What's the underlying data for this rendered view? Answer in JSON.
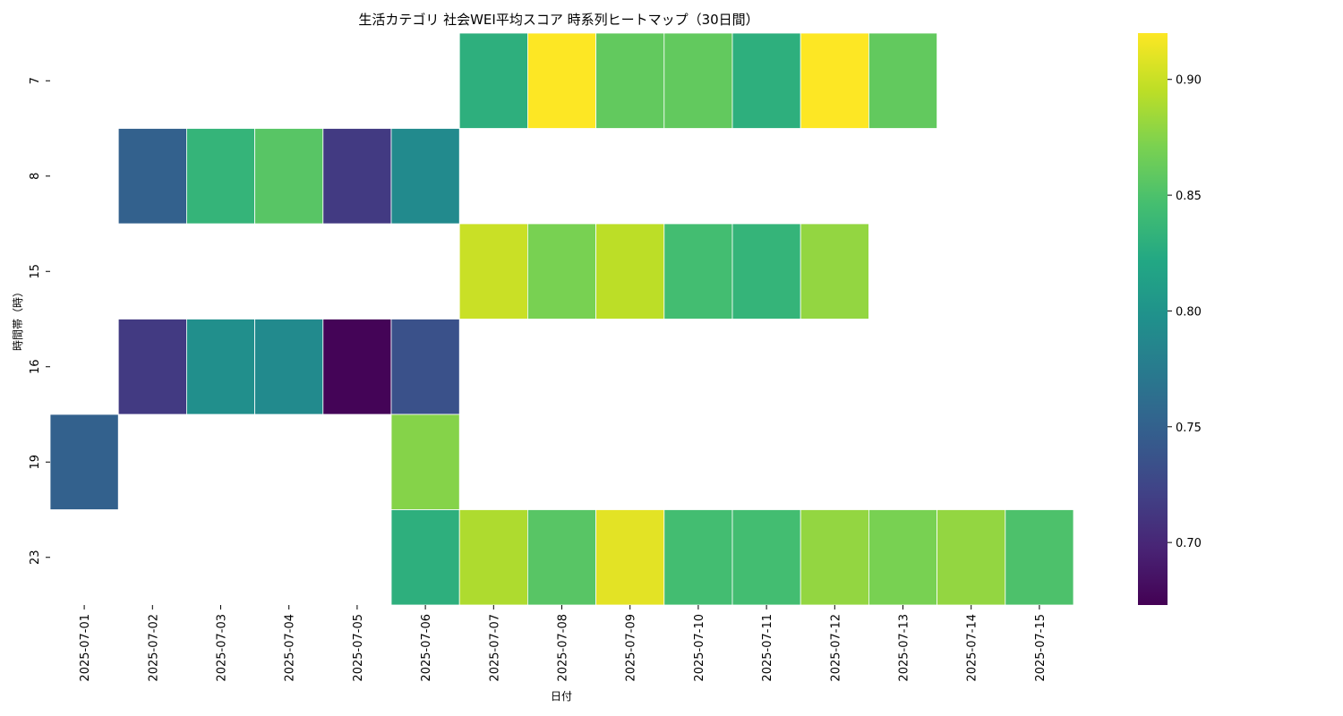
{
  "chart_data": {
    "type": "heatmap",
    "title": "生活カテゴリ 社会WEI平均スコア 時系列ヒートマップ（30日間）",
    "xlabel": "日付",
    "ylabel": "時間帯（時）",
    "x_categories": [
      "2025-07-01",
      "2025-07-02",
      "2025-07-03",
      "2025-07-04",
      "2025-07-05",
      "2025-07-06",
      "2025-07-07",
      "2025-07-08",
      "2025-07-09",
      "2025-07-10",
      "2025-07-11",
      "2025-07-12",
      "2025-07-13",
      "2025-07-14",
      "2025-07-15"
    ],
    "y_categories": [
      "7",
      "8",
      "15",
      "16",
      "19",
      "23"
    ],
    "values": [
      [
        null,
        null,
        null,
        null,
        null,
        null,
        0.83,
        0.92,
        0.86,
        0.86,
        0.83,
        0.92,
        0.86,
        null,
        null
      ],
      [
        null,
        0.75,
        0.835,
        0.855,
        0.715,
        0.79,
        null,
        null,
        null,
        null,
        null,
        null,
        null,
        null,
        null
      ],
      [
        null,
        null,
        null,
        null,
        null,
        null,
        0.9,
        0.87,
        0.895,
        0.845,
        0.835,
        0.88,
        null,
        null,
        null
      ],
      [
        null,
        0.715,
        0.795,
        0.79,
        0.675,
        0.735,
        null,
        null,
        null,
        null,
        null,
        null,
        null,
        null,
        null
      ],
      [
        0.75,
        null,
        null,
        null,
        null,
        0.875,
        null,
        null,
        null,
        null,
        null,
        null,
        null,
        null,
        null
      ],
      [
        null,
        null,
        null,
        null,
        null,
        0.83,
        0.89,
        0.855,
        0.91,
        0.845,
        0.845,
        0.88,
        0.87,
        0.88,
        0.85
      ]
    ],
    "colormap": "viridis",
    "vmin": 0.673,
    "vmax": 0.92,
    "colorbar_ticks": [
      0.7,
      0.75,
      0.8,
      0.85,
      0.9
    ],
    "colorbar_tick_labels": [
      "0.70",
      "0.75",
      "0.80",
      "0.85",
      "0.90"
    ]
  }
}
